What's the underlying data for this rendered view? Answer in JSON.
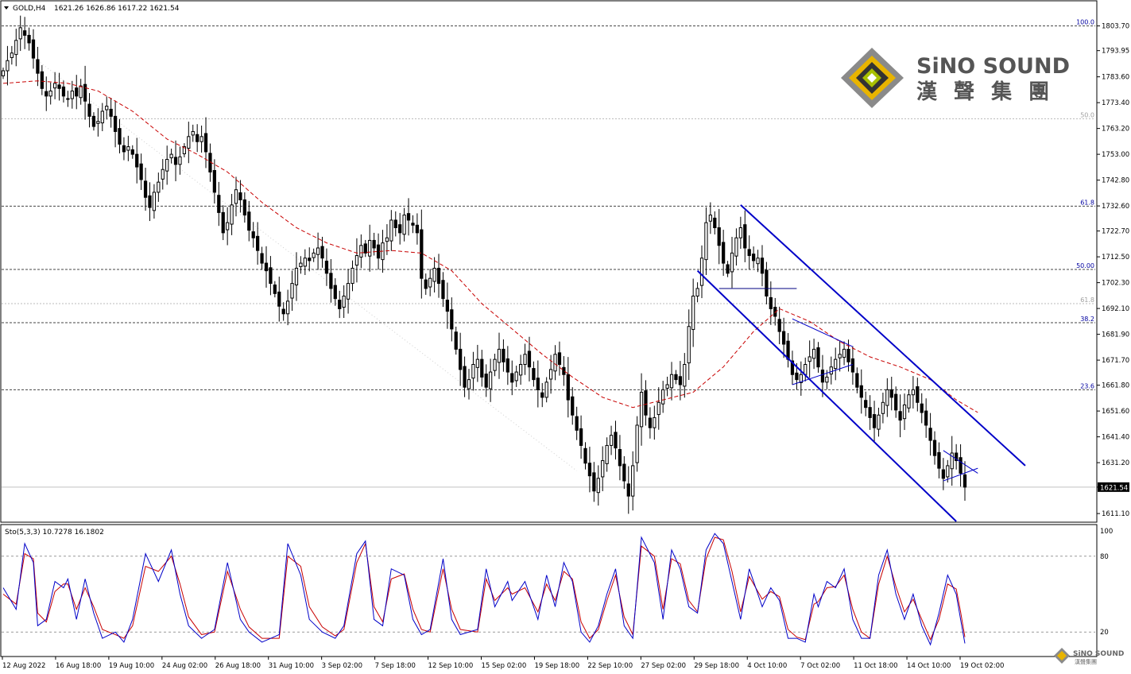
{
  "header": {
    "symbol": "GOLD,H4",
    "ohlc": "1621.26 1626.86 1617.22 1621.54"
  },
  "brand": {
    "name": "SiNO SOUND",
    "chinese": "漢 聲 集 團",
    "watermark_name": "SiNO SOUND",
    "watermark_chinese": "漢聲集團"
  },
  "colors": {
    "bg": "#ffffff",
    "frame": "#000000",
    "grid": "#c8c8c8",
    "candle": "#000000",
    "ma": "#c80000",
    "channel": "#0000c8",
    "fib_label": "#0000a0",
    "fib_label_faint": "#a0a0a0",
    "stoch_main": "#0000c8",
    "stoch_signal": "#c80000"
  },
  "chart_data": [
    {
      "type": "candlestick",
      "instrument": "GOLD",
      "timeframe": "H4",
      "ylim": [
        1608.0,
        1813.0
      ],
      "y_ticks": [
        "1803.70",
        "1793.95",
        "1783.60",
        "1773.40",
        "1763.20",
        "1753.00",
        "1742.80",
        "1732.60",
        "1722.70",
        "1712.50",
        "1702.30",
        "1692.10",
        "1681.90",
        "1671.70",
        "1661.80",
        "1651.60",
        "1641.40",
        "1631.20",
        "1621.54",
        "1611.10"
      ],
      "x_labels": [
        "12 Aug 2022",
        "16 Aug 18:00",
        "19 Aug 10:00",
        "24 Aug 02:00",
        "26 Aug 18:00",
        "31 Aug 10:00",
        "3 Sep 02:00",
        "7 Sep 18:00",
        "12 Sep 10:00",
        "15 Sep 02:00",
        "19 Sep 18:00",
        "22 Sep 10:00",
        "27 Sep 02:00",
        "29 Sep 18:00",
        "4 Oct 10:00",
        "7 Oct 02:00",
        "11 Oct 18:00",
        "14 Oct 10:00",
        "19 Oct 02:00"
      ],
      "last_price": 1621.54,
      "closes": [
        1786,
        1790,
        1793,
        1798,
        1803,
        1800,
        1797,
        1791,
        1785,
        1779,
        1776,
        1778,
        1781,
        1779,
        1776,
        1775,
        1778,
        1776,
        1780,
        1774,
        1768,
        1764,
        1766,
        1770,
        1772,
        1768,
        1762,
        1757,
        1754,
        1756,
        1753,
        1748,
        1743,
        1736,
        1732,
        1738,
        1742,
        1747,
        1751,
        1753,
        1749,
        1752,
        1756,
        1760,
        1762,
        1758,
        1760,
        1754,
        1746,
        1738,
        1730,
        1722,
        1726,
        1733,
        1739,
        1735,
        1729,
        1723,
        1720,
        1715,
        1710,
        1707,
        1702,
        1698,
        1693,
        1690,
        1695,
        1702,
        1708,
        1710,
        1712,
        1711,
        1714,
        1716,
        1712,
        1706,
        1700,
        1696,
        1692,
        1697,
        1702,
        1708,
        1713,
        1717,
        1714,
        1719,
        1716,
        1712,
        1718,
        1720,
        1727,
        1724,
        1722,
        1729,
        1727,
        1725,
        1722,
        1704,
        1700,
        1704,
        1708,
        1702,
        1696,
        1691,
        1684,
        1676,
        1668,
        1661,
        1664,
        1670,
        1672,
        1665,
        1661,
        1667,
        1672,
        1676,
        1671,
        1667,
        1663,
        1667,
        1670,
        1674,
        1669,
        1664,
        1660,
        1657,
        1663,
        1668,
        1674,
        1670,
        1666,
        1656,
        1650,
        1644,
        1638,
        1631,
        1626,
        1620,
        1625,
        1632,
        1638,
        1642,
        1637,
        1630,
        1624,
        1618,
        1630,
        1646,
        1659,
        1650,
        1645,
        1649,
        1655,
        1660,
        1662,
        1666,
        1664,
        1662,
        1670,
        1685,
        1697,
        1700,
        1712,
        1726,
        1729,
        1724,
        1717,
        1710,
        1706,
        1714,
        1720,
        1724,
        1716,
        1713,
        1711,
        1712,
        1706,
        1697,
        1692,
        1689,
        1683,
        1678,
        1672,
        1666,
        1664,
        1666,
        1670,
        1673,
        1676,
        1669,
        1663,
        1665,
        1669,
        1672,
        1674,
        1676,
        1671,
        1667,
        1661,
        1657,
        1653,
        1649,
        1645,
        1650,
        1655,
        1660,
        1657,
        1652,
        1648,
        1654,
        1658,
        1660,
        1655,
        1651,
        1646,
        1640,
        1634,
        1629,
        1625,
        1630,
        1635,
        1632,
        1627,
        1621.54
      ],
      "moving_average": {
        "color": "#c80000",
        "samples": [
          [
            0,
            1781
          ],
          [
            8,
            1782
          ],
          [
            15,
            1781
          ],
          [
            22,
            1778
          ],
          [
            30,
            1770
          ],
          [
            38,
            1759
          ],
          [
            45,
            1753
          ],
          [
            52,
            1746
          ],
          [
            60,
            1734
          ],
          [
            68,
            1724
          ],
          [
            75,
            1718
          ],
          [
            82,
            1714
          ],
          [
            90,
            1715
          ],
          [
            97,
            1714
          ],
          [
            104,
            1707
          ],
          [
            111,
            1694
          ],
          [
            118,
            1684
          ],
          [
            125,
            1674
          ],
          [
            132,
            1665
          ],
          [
            139,
            1657
          ],
          [
            146,
            1653
          ],
          [
            153,
            1656
          ],
          [
            160,
            1659
          ],
          [
            167,
            1669
          ],
          [
            174,
            1683
          ],
          [
            180,
            1692
          ],
          [
            187,
            1687
          ],
          [
            194,
            1679
          ],
          [
            201,
            1673
          ],
          [
            208,
            1669
          ],
          [
            215,
            1664
          ],
          [
            221,
            1656
          ],
          [
            226,
            1651
          ]
        ]
      },
      "fibonacci_levels": [
        {
          "label": "100.0",
          "value": 1803.7,
          "faint": false
        },
        {
          "label": "50.0",
          "value": 1767.0,
          "faint": true
        },
        {
          "label": "61.8",
          "value": 1732.5,
          "faint": false
        },
        {
          "label": "50.00",
          "value": 1707.5,
          "faint": false
        },
        {
          "label": "61.8",
          "value": 1694.0,
          "faint": true
        },
        {
          "label": "38.2",
          "value": 1686.5,
          "faint": false
        },
        {
          "label": "23.6",
          "value": 1660.0,
          "faint": false
        }
      ],
      "channel_lines": [
        {
          "from": [
            161,
            1707
          ],
          "to": [
            221,
            1608
          ]
        },
        {
          "from": [
            171,
            1733
          ],
          "to": [
            237,
            1630
          ]
        }
      ],
      "triangle_lines": [
        {
          "from": [
            183,
            1688
          ],
          "to": [
            197,
            1677
          ]
        },
        {
          "from": [
            183,
            1662
          ],
          "to": [
            197,
            1670
          ]
        },
        {
          "from": [
            218,
            1636
          ],
          "to": [
            226,
            1627
          ]
        },
        {
          "from": [
            218,
            1624
          ],
          "to": [
            226,
            1629
          ]
        }
      ],
      "neckline": {
        "from": [
          166,
          1700
        ],
        "to": [
          184,
          1700
        ]
      }
    },
    {
      "type": "line",
      "name": "Sto(5,3,3)",
      "legend": "Sto(5,3,3) 10.7278 16.1802",
      "ylim": [
        0,
        100
      ],
      "levels": [
        {
          "label": "100",
          "value": 100
        },
        {
          "label": "80",
          "value": 80
        },
        {
          "label": "20",
          "value": 20
        }
      ],
      "main_samples": [
        [
          0,
          55
        ],
        [
          3,
          38
        ],
        [
          5,
          90
        ],
        [
          7,
          75
        ],
        [
          8,
          25
        ],
        [
          10,
          30
        ],
        [
          12,
          60
        ],
        [
          14,
          55
        ],
        [
          15,
          62
        ],
        [
          17,
          30
        ],
        [
          19,
          62
        ],
        [
          21,
          35
        ],
        [
          23,
          15
        ],
        [
          26,
          20
        ],
        [
          28,
          12
        ],
        [
          30,
          30
        ],
        [
          33,
          82
        ],
        [
          36,
          60
        ],
        [
          39,
          85
        ],
        [
          41,
          50
        ],
        [
          43,
          25
        ],
        [
          46,
          15
        ],
        [
          49,
          22
        ],
        [
          52,
          75
        ],
        [
          55,
          30
        ],
        [
          57,
          20
        ],
        [
          60,
          12
        ],
        [
          64,
          18
        ],
        [
          66,
          90
        ],
        [
          69,
          65
        ],
        [
          71,
          30
        ],
        [
          74,
          20
        ],
        [
          77,
          15
        ],
        [
          79,
          25
        ],
        [
          82,
          82
        ],
        [
          84,
          92
        ],
        [
          86,
          30
        ],
        [
          88,
          25
        ],
        [
          90,
          70
        ],
        [
          93,
          65
        ],
        [
          95,
          30
        ],
        [
          97,
          18
        ],
        [
          99,
          22
        ],
        [
          102,
          78
        ],
        [
          104,
          30
        ],
        [
          106,
          18
        ],
        [
          110,
          22
        ],
        [
          112,
          70
        ],
        [
          114,
          40
        ],
        [
          117,
          60
        ],
        [
          118,
          45
        ],
        [
          121,
          60
        ],
        [
          124,
          30
        ],
        [
          126,
          65
        ],
        [
          128,
          40
        ],
        [
          130,
          75
        ],
        [
          132,
          60
        ],
        [
          134,
          20
        ],
        [
          136,
          12
        ],
        [
          138,
          25
        ],
        [
          140,
          50
        ],
        [
          142,
          70
        ],
        [
          144,
          25
        ],
        [
          146,
          15
        ],
        [
          148,
          95
        ],
        [
          151,
          75
        ],
        [
          153,
          30
        ],
        [
          155,
          85
        ],
        [
          157,
          70
        ],
        [
          159,
          40
        ],
        [
          161,
          35
        ],
        [
          163,
          85
        ],
        [
          165,
          98
        ],
        [
          167,
          90
        ],
        [
          169,
          60
        ],
        [
          171,
          30
        ],
        [
          173,
          70
        ],
        [
          176,
          40
        ],
        [
          178,
          55
        ],
        [
          180,
          45
        ],
        [
          182,
          15
        ],
        [
          184,
          15
        ],
        [
          186,
          12
        ],
        [
          188,
          50
        ],
        [
          189,
          40
        ],
        [
          191,
          60
        ],
        [
          193,
          55
        ],
        [
          195,
          70
        ],
        [
          197,
          30
        ],
        [
          199,
          15
        ],
        [
          201,
          15
        ],
        [
          203,
          65
        ],
        [
          205,
          85
        ],
        [
          207,
          50
        ],
        [
          209,
          30
        ],
        [
          211,
          50
        ],
        [
          213,
          25
        ],
        [
          215,
          10
        ],
        [
          217,
          35
        ],
        [
          219,
          65
        ],
        [
          221,
          50
        ],
        [
          222,
          30
        ],
        [
          223,
          11
        ]
      ],
      "signal_samples": [
        [
          0,
          50
        ],
        [
          3,
          42
        ],
        [
          5,
          82
        ],
        [
          7,
          78
        ],
        [
          8,
          35
        ],
        [
          10,
          28
        ],
        [
          12,
          52
        ],
        [
          14,
          58
        ],
        [
          15,
          58
        ],
        [
          17,
          38
        ],
        [
          19,
          55
        ],
        [
          21,
          40
        ],
        [
          23,
          22
        ],
        [
          26,
          18
        ],
        [
          28,
          15
        ],
        [
          30,
          25
        ],
        [
          33,
          72
        ],
        [
          36,
          68
        ],
        [
          39,
          80
        ],
        [
          41,
          58
        ],
        [
          43,
          32
        ],
        [
          46,
          18
        ],
        [
          49,
          20
        ],
        [
          52,
          68
        ],
        [
          55,
          38
        ],
        [
          57,
          24
        ],
        [
          60,
          15
        ],
        [
          64,
          15
        ],
        [
          66,
          80
        ],
        [
          69,
          72
        ],
        [
          71,
          40
        ],
        [
          74,
          24
        ],
        [
          77,
          17
        ],
        [
          79,
          22
        ],
        [
          82,
          75
        ],
        [
          84,
          90
        ],
        [
          86,
          40
        ],
        [
          88,
          28
        ],
        [
          90,
          62
        ],
        [
          93,
          66
        ],
        [
          95,
          38
        ],
        [
          97,
          22
        ],
        [
          99,
          20
        ],
        [
          102,
          70
        ],
        [
          104,
          38
        ],
        [
          106,
          22
        ],
        [
          110,
          20
        ],
        [
          112,
          62
        ],
        [
          114,
          45
        ],
        [
          117,
          55
        ],
        [
          118,
          50
        ],
        [
          121,
          55
        ],
        [
          124,
          36
        ],
        [
          126,
          58
        ],
        [
          128,
          45
        ],
        [
          130,
          68
        ],
        [
          132,
          62
        ],
        [
          134,
          28
        ],
        [
          136,
          15
        ],
        [
          138,
          22
        ],
        [
          140,
          45
        ],
        [
          142,
          65
        ],
        [
          144,
          32
        ],
        [
          146,
          18
        ],
        [
          148,
          88
        ],
        [
          151,
          80
        ],
        [
          153,
          38
        ],
        [
          155,
          78
        ],
        [
          157,
          74
        ],
        [
          159,
          45
        ],
        [
          161,
          36
        ],
        [
          163,
          78
        ],
        [
          165,
          95
        ],
        [
          167,
          93
        ],
        [
          169,
          68
        ],
        [
          171,
          36
        ],
        [
          173,
          64
        ],
        [
          176,
          46
        ],
        [
          178,
          52
        ],
        [
          180,
          48
        ],
        [
          182,
          22
        ],
        [
          184,
          16
        ],
        [
          186,
          14
        ],
        [
          188,
          42
        ],
        [
          189,
          44
        ],
        [
          191,
          55
        ],
        [
          193,
          56
        ],
        [
          195,
          65
        ],
        [
          197,
          38
        ],
        [
          199,
          20
        ],
        [
          201,
          15
        ],
        [
          203,
          58
        ],
        [
          205,
          80
        ],
        [
          207,
          56
        ],
        [
          209,
          36
        ],
        [
          211,
          46
        ],
        [
          213,
          30
        ],
        [
          215,
          14
        ],
        [
          217,
          30
        ],
        [
          219,
          58
        ],
        [
          221,
          54
        ],
        [
          222,
          36
        ],
        [
          223,
          16
        ]
      ]
    }
  ]
}
